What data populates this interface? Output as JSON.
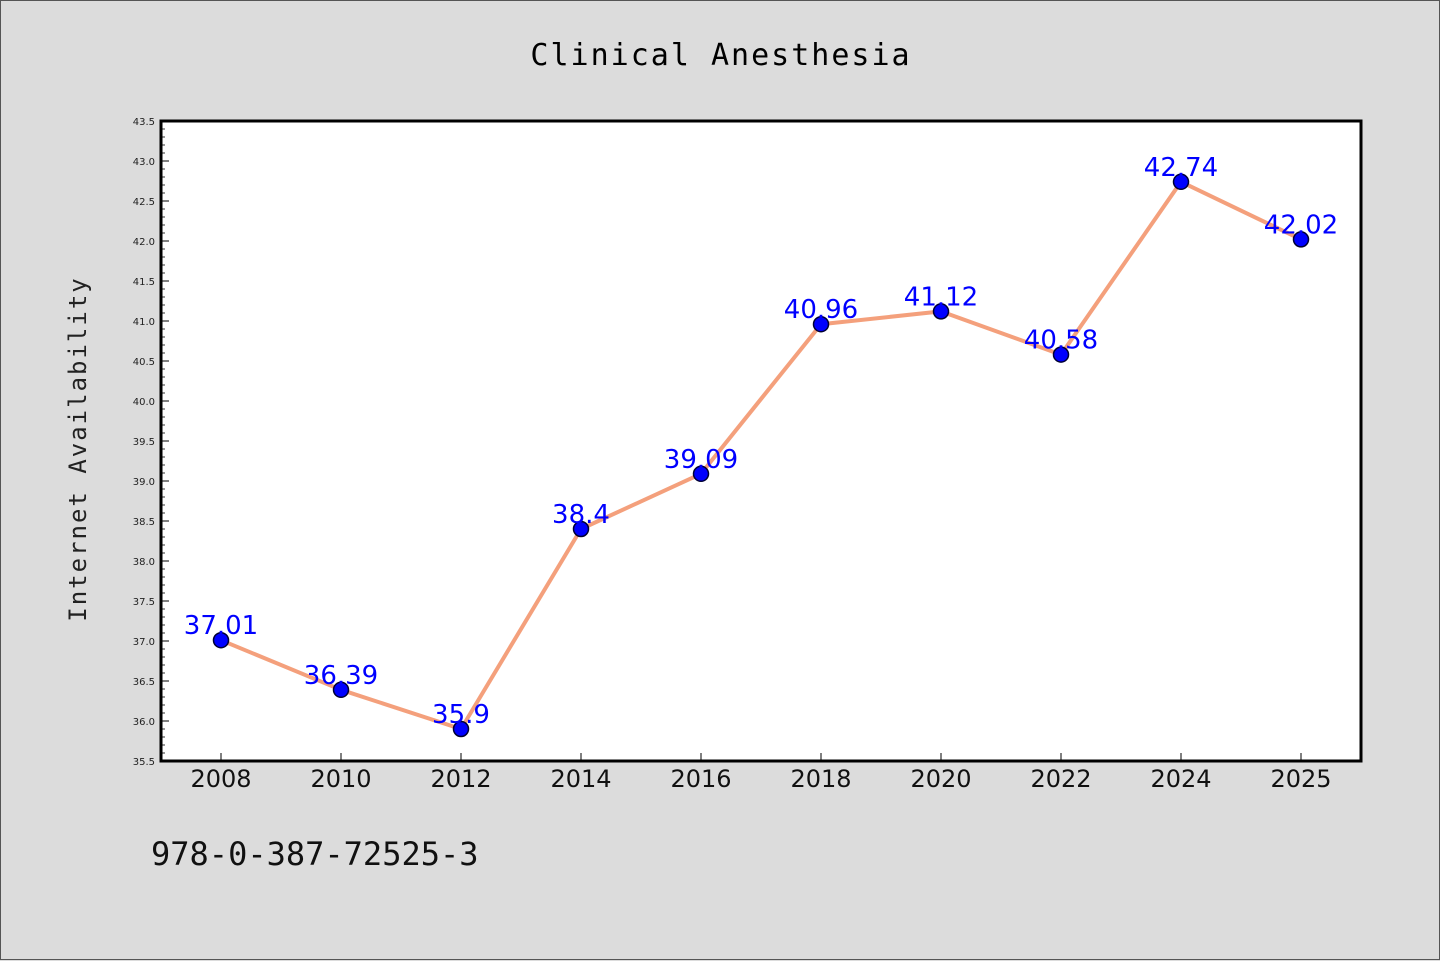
{
  "chart_data": {
    "type": "line",
    "title": "Clinical Anesthesia",
    "xlabel": "",
    "ylabel": "Internet Availability",
    "categories": [
      "2008",
      "2010",
      "2012",
      "2014",
      "2016",
      "2018",
      "2020",
      "2022",
      "2024",
      "2025"
    ],
    "series": [
      {
        "values": [
          37.01,
          36.39,
          35.9,
          38.4,
          39.09,
          40.96,
          41.12,
          40.58,
          42.74,
          42.02
        ],
        "labels": [
          "37.01",
          "36.39",
          "35.9",
          "38.4",
          "39.09",
          "40.96",
          "41.12",
          "40.58",
          "42.74",
          "42.02"
        ]
      }
    ],
    "ylim": [
      35.5,
      43.5
    ],
    "yticks": [
      "35.5",
      "36.0",
      "36.5",
      "37.0",
      "37.5",
      "38.0",
      "38.5",
      "39.0",
      "39.5",
      "40.0",
      "40.5",
      "41.0",
      "41.5",
      "42.0",
      "42.5",
      "43.0",
      "43.5"
    ],
    "grid": false,
    "legend": "none",
    "colors": {
      "line": "#f4a07c",
      "marker": "#0000ff",
      "marker_edge": "#000033",
      "label": "#0000ff"
    }
  },
  "footer_text": "978-0-387-72525-3"
}
